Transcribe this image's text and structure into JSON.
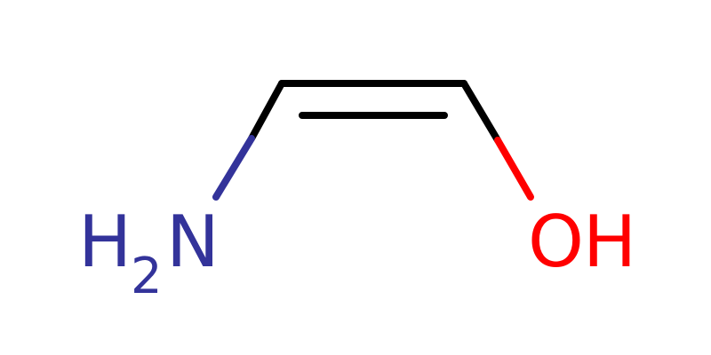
{
  "molecule": {
    "atoms": {
      "nitrogen": {
        "h": "H",
        "h_count": "2",
        "element": "N",
        "color": "#33339a"
      },
      "oxygen": {
        "element": "O",
        "h": "H",
        "color": "#ff0000"
      }
    },
    "bond_color": "#000000",
    "background": "#ffffff"
  }
}
